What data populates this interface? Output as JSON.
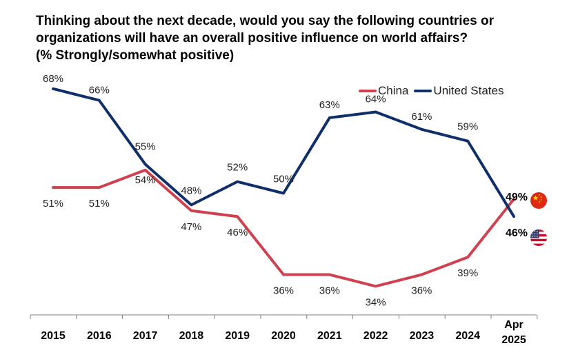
{
  "title_lines": [
    "Thinking about the next decade, would you say the following countries or",
    "organizations will have an  overall positive influence on world affairs?",
    "(% Strongly/somewhat positive)"
  ],
  "legend": [
    {
      "label": "China",
      "color": "#d0404e"
    },
    {
      "label": "United States",
      "color": "#0f2f6b"
    }
  ],
  "chart_data": {
    "type": "line",
    "title": "Thinking about the next decade, would you say the following countries or organizations will have an overall positive influence on world affairs? (% Strongly/somewhat positive)",
    "categories": [
      "2015",
      "2016",
      "2017",
      "2018",
      "2019",
      "2020",
      "2021",
      "2022",
      "2023",
      "2024",
      "Apr 2025"
    ],
    "category_lines": [
      [
        "2015"
      ],
      [
        "2016"
      ],
      [
        "2017"
      ],
      [
        "2018"
      ],
      [
        "2019"
      ],
      [
        "2020"
      ],
      [
        "2021"
      ],
      [
        "2022"
      ],
      [
        "2023"
      ],
      [
        "2024"
      ],
      [
        "Apr",
        "2025"
      ]
    ],
    "series": [
      {
        "name": "China",
        "color": "#d0404e",
        "flag": "china-flag",
        "values": [
          51,
          51,
          54,
          47,
          46,
          36,
          36,
          34,
          36,
          39,
          49
        ],
        "labels": [
          "51%",
          "51%",
          "54%",
          "47%",
          "46%",
          "36%",
          "36%",
          "34%",
          "36%",
          "39%",
          "49%"
        ]
      },
      {
        "name": "United States",
        "color": "#0f2f6b",
        "flag": "us-flag",
        "values": [
          68,
          66,
          55,
          48,
          52,
          50,
          63,
          64,
          61,
          59,
          46
        ],
        "labels": [
          "68%",
          "66%",
          "55%",
          "48%",
          "52%",
          "50%",
          "63%",
          "64%",
          "61%",
          "59%",
          "46%"
        ]
      }
    ],
    "ylim": [
      20,
      80
    ],
    "xlabel": "",
    "ylabel": "",
    "grid": false,
    "legend_position": "top-right"
  }
}
